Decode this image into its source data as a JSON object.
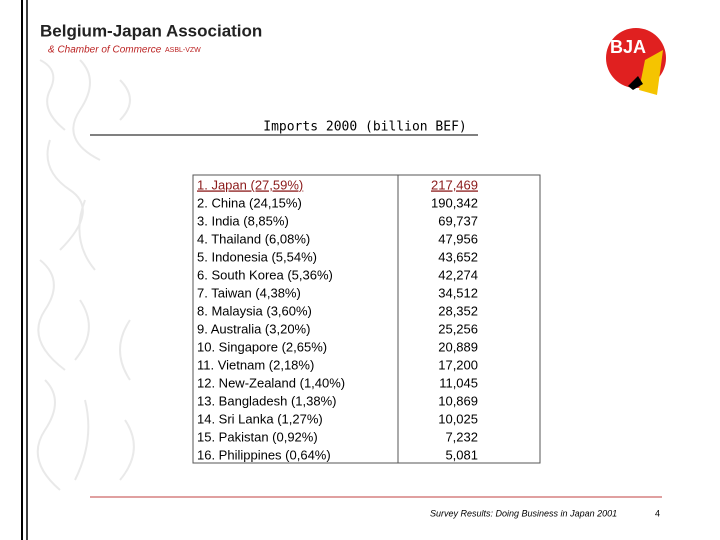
{
  "header": {
    "title": "Belgium-Japan Association",
    "subtitle": "& Chamber of Commerce",
    "suffix": "ASBL-VZW",
    "logo": "BJA"
  },
  "slide": {
    "title": "Imports 2000 (billion BEF)"
  },
  "table": {
    "rows": [
      [
        "1. Japan (27,59%)",
        "217,469"
      ],
      [
        "2. China (24,15%)",
        "190,342"
      ],
      [
        "3. India (8,85%)",
        "69,737"
      ],
      [
        "4. Thailand (6,08%)",
        "47,956"
      ],
      [
        "5. Indonesia (5,54%)",
        "43,652"
      ],
      [
        "6. South Korea (5,36%)",
        "42,274"
      ],
      [
        "7. Taiwan (4,38%)",
        "34,512"
      ],
      [
        "8. Malaysia (3,60%)",
        "28,352"
      ],
      [
        "9. Australia (3,20%)",
        "25,256"
      ],
      [
        "10. Singapore (2,65%)",
        "20,889"
      ],
      [
        "11. Vietnam (2,18%)",
        "17,200"
      ],
      [
        "12. New-Zealand (1,40%)",
        "11,045"
      ],
      [
        "13. Bangladesh (1,38%)",
        "10,869"
      ],
      [
        "14. Sri Lanka (1,27%)",
        "10,025"
      ],
      [
        "15. Pakistan (0,92%)",
        "7,232"
      ],
      [
        "16. Philippines (0,64%)",
        "5,081"
      ]
    ]
  },
  "footer": {
    "source": "Survey Results: Doing Business in Japan 2001",
    "page": "4"
  }
}
